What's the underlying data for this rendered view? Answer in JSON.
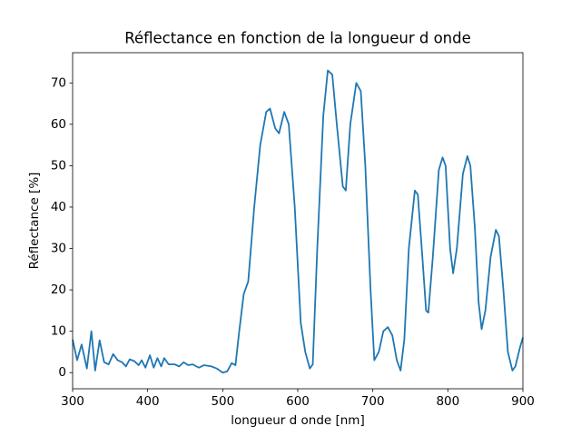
{
  "chart_data": {
    "type": "line",
    "title": "Réflectance en fonction de la longueur d onde",
    "xlabel": "longueur d onde [nm]",
    "ylabel": "Réflectance [%]",
    "color": "#1f77b4",
    "x": [
      300,
      306,
      312,
      319,
      325,
      330,
      336,
      342,
      348,
      354,
      360,
      366,
      371,
      376,
      382,
      388,
      392,
      397,
      403,
      408,
      413,
      418,
      422,
      428,
      436,
      442,
      448,
      454,
      460,
      468,
      475,
      485,
      492,
      500,
      506,
      512,
      517,
      522,
      528,
      534,
      542,
      550,
      558,
      563,
      570,
      575,
      582,
      588,
      596,
      604,
      610,
      616,
      620,
      626,
      634,
      640,
      646,
      652,
      660,
      664,
      670,
      678,
      684,
      690,
      697,
      702,
      708,
      714,
      720,
      726,
      732,
      737,
      742,
      748,
      756,
      760,
      766,
      771,
      774,
      780,
      788,
      793,
      797,
      803,
      807,
      812,
      820,
      826,
      830,
      836,
      841,
      845,
      850,
      857,
      864,
      868,
      874,
      880,
      886,
      890,
      896,
      900
    ],
    "values": [
      8,
      3,
      6.8,
      1,
      10,
      0.5,
      7.8,
      2.5,
      2,
      4.5,
      3,
      2.5,
      1.5,
      3.2,
      2.8,
      1.8,
      3,
      1.2,
      4.2,
      1.2,
      3.5,
      1.5,
      3.5,
      2,
      2,
      1.5,
      2.5,
      1.8,
      2,
      1.2,
      1.8,
      1.5,
      1,
      0,
      0.3,
      2.3,
      1.8,
      10,
      19,
      22,
      40,
      55,
      63,
      63.8,
      59,
      57.8,
      63,
      60,
      40,
      12,
      5,
      1,
      2,
      30,
      62,
      73,
      72,
      60,
      45,
      44,
      60,
      70,
      68,
      50,
      20,
      3,
      5,
      10,
      11,
      9,
      3,
      0.5,
      8,
      30,
      44,
      43,
      28,
      15,
      14.5,
      28,
      49,
      52,
      50,
      30,
      24,
      30,
      48,
      52.3,
      50,
      35,
      17,
      10.5,
      15,
      28,
      34.5,
      33,
      20,
      5,
      0.5,
      1.5,
      6,
      8.5
    ],
    "xlim": [
      300,
      900
    ],
    "ylim": [
      -3.9,
      77.3
    ],
    "xticks": [
      300,
      400,
      500,
      600,
      700,
      800,
      900
    ],
    "yticks": [
      0,
      10,
      20,
      30,
      40,
      50,
      60,
      70
    ]
  }
}
